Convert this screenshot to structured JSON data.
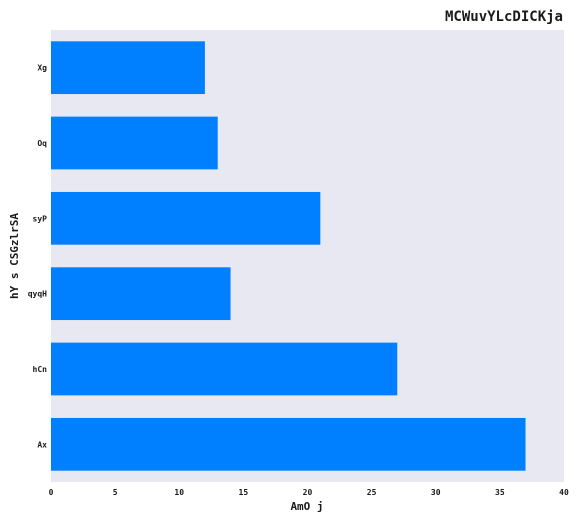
{
  "chart_data": {
    "type": "bar",
    "orientation": "horizontal",
    "title": "MCWuvYLcDICKja",
    "xlabel": "AmO j",
    "ylabel": "hY s CSGzlrSA",
    "categories": [
      "Ax",
      "hCn",
      "qyqH",
      "syP",
      "Oq",
      "Xg"
    ],
    "values": [
      37,
      27,
      14,
      21,
      13,
      12
    ],
    "xlim": [
      0,
      40
    ],
    "xticks": [
      0,
      5,
      10,
      15,
      20,
      25,
      30,
      35,
      40
    ],
    "grid": false,
    "legend": "none",
    "colors": {
      "bar": "#0080ff",
      "plot_background": "#e8e8f2"
    }
  }
}
